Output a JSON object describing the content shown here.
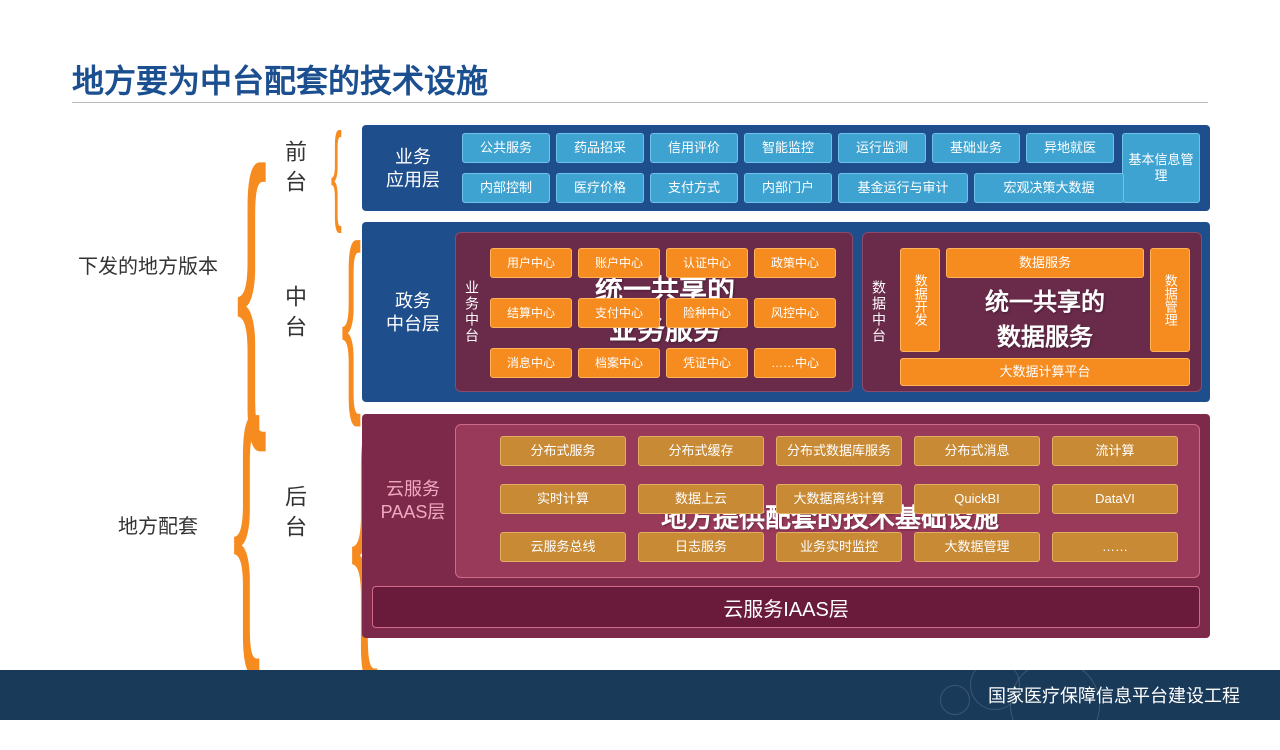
{
  "title": "地方要为中台配套的技术设施",
  "footer": "国家医疗保障信息平台建设工程",
  "groups": {
    "top": {
      "label": "下发的地方版本"
    },
    "bottom": {
      "label": "地方配套"
    }
  },
  "stages": {
    "front": "前台",
    "mid": "中台",
    "back": "后台"
  },
  "colors": {
    "darkblue": "#1f4e8c",
    "blue_box": "#3fa3d1",
    "blue_border": "#6fc3e8",
    "maroon": "#7d2a4a",
    "orange": "#f68b1f",
    "orange_border": "#ffb45a",
    "paas_box": "#c88a35",
    "paas_border": "#e0b060",
    "pink_panel": "#9a3a5a",
    "pink_border": "#d06a8a",
    "mid_panel": "#6a2a4a"
  },
  "front": {
    "layer_label": "业务\n应用层",
    "row1": [
      "公共服务",
      "药品招采",
      "信用评价",
      "智能监控",
      "运行监测",
      "基础业务",
      "异地就医"
    ],
    "row2": [
      "内部控制",
      "医疗价格",
      "支付方式",
      "内部门户",
      "基金运行与审计",
      "宏观决策大数据"
    ],
    "tall": "基本信息管理"
  },
  "mid": {
    "layer_label": "政务\n中台层",
    "biz": {
      "label": "业务中台",
      "overlay": "统一共享的\n业务服务",
      "r1": [
        "用户中心",
        "账户中心",
        "认证中心",
        "政策中心"
      ],
      "r2": [
        "结算中心",
        "支付中心",
        "险种中心",
        "风控中心"
      ],
      "r3": [
        "消息中心",
        "档案中心",
        "凭证中心",
        "……中心"
      ]
    },
    "data": {
      "label": "数据中台",
      "overlay": "统一共享的\n数据服务",
      "left": "数据开发",
      "top": "数据服务",
      "right": "数据管理",
      "bottom": "大数据计算平台"
    }
  },
  "back": {
    "layer_label": "云服务\nPAAS层",
    "overlay": "地方提供配套的技术基础设施",
    "r1": [
      "分布式服务",
      "分布式缓存",
      "分布式数据库服务",
      "分布式消息",
      "流计算"
    ],
    "r2": [
      "实时计算",
      "数据上云",
      "大数据离线计算",
      "QuickBI",
      "DataVI"
    ],
    "r3": [
      "云服务总线",
      "日志服务",
      "业务实时监控",
      "大数据管理",
      "……"
    ],
    "iaas": "云服务IAAS层"
  }
}
